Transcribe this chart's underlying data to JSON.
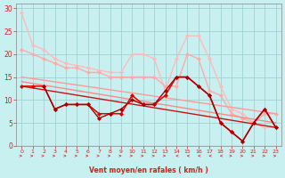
{
  "xlabel": "Vent moyen/en rafales ( km/h )",
  "bg_color": "#c8f0f0",
  "grid_color": "#99cccc",
  "xlim": [
    -0.5,
    23.5
  ],
  "ylim": [
    0,
    31
  ],
  "yticks": [
    0,
    5,
    10,
    15,
    20,
    25,
    30
  ],
  "xticks": [
    0,
    1,
    2,
    3,
    4,
    5,
    6,
    7,
    8,
    9,
    10,
    11,
    12,
    13,
    14,
    15,
    16,
    17,
    18,
    19,
    20,
    21,
    22,
    23
  ],
  "series": [
    {
      "name": "lightest_pink_top",
      "color": "#ffbbbb",
      "linewidth": 1.0,
      "marker": "D",
      "markersize": 2.0,
      "x": [
        0,
        1,
        2,
        3,
        4,
        5,
        6,
        7,
        8,
        9,
        10,
        11,
        12,
        13,
        14,
        15,
        16,
        17,
        18,
        19,
        20,
        21,
        22,
        23
      ],
      "y": [
        29,
        22,
        21,
        19,
        18,
        17.5,
        17,
        16.5,
        16,
        16,
        20,
        20,
        19,
        12,
        19,
        24,
        24,
        19,
        13,
        8,
        7,
        5,
        4,
        4
      ]
    },
    {
      "name": "light_pink_mid",
      "color": "#ffaaaa",
      "linewidth": 1.0,
      "marker": "D",
      "markersize": 2.0,
      "x": [
        0,
        1,
        2,
        3,
        4,
        5,
        6,
        7,
        8,
        9,
        10,
        11,
        12,
        13,
        14,
        15,
        16,
        17,
        18,
        19,
        20,
        21,
        22,
        23
      ],
      "y": [
        21,
        20,
        19,
        18,
        17,
        17,
        16,
        16,
        15,
        15,
        15,
        15,
        15,
        13,
        13,
        20,
        19,
        12,
        11,
        7,
        6,
        5,
        7,
        7
      ]
    },
    {
      "name": "medium_pink_diag1",
      "color": "#ff9999",
      "linewidth": 1.0,
      "marker": null,
      "x": [
        0,
        23
      ],
      "y": [
        15,
        7
      ]
    },
    {
      "name": "medium_pink_diag2",
      "color": "#ff8888",
      "linewidth": 1.0,
      "marker": null,
      "x": [
        0,
        23
      ],
      "y": [
        14,
        5
      ]
    },
    {
      "name": "dark_red_straight",
      "color": "#cc1111",
      "linewidth": 1.0,
      "marker": null,
      "x": [
        0,
        23
      ],
      "y": [
        13,
        4
      ]
    },
    {
      "name": "dark_red_jagged1",
      "color": "#dd0000",
      "linewidth": 1.1,
      "marker": "D",
      "markersize": 2.0,
      "x": [
        0,
        1,
        2,
        3,
        4,
        5,
        6,
        7,
        8,
        9,
        10,
        11,
        12,
        13,
        14,
        15,
        16,
        17,
        18,
        19,
        20,
        21,
        22,
        23
      ],
      "y": [
        13,
        13,
        13,
        8,
        9,
        9,
        9,
        7,
        7,
        7,
        11,
        9,
        9,
        11,
        15,
        15,
        13,
        11,
        5,
        3,
        1,
        5,
        8,
        4
      ]
    },
    {
      "name": "dark_red_jagged2",
      "color": "#aa0000",
      "linewidth": 1.0,
      "marker": "D",
      "markersize": 2.0,
      "x": [
        2,
        3,
        4,
        5,
        6,
        7,
        8,
        9,
        10,
        11,
        12,
        13,
        14,
        15,
        16,
        17,
        18,
        19,
        20,
        21,
        22,
        23
      ],
      "y": [
        13,
        8,
        9,
        9,
        9,
        6,
        7,
        8,
        10,
        9,
        9,
        12,
        15,
        15,
        13,
        11,
        5,
        3,
        1,
        5,
        8,
        4
      ]
    }
  ],
  "arrows": {
    "color": "#ee3333",
    "directions": [
      1,
      1,
      1,
      1,
      1,
      1,
      1,
      1,
      1,
      1,
      1,
      1,
      1,
      1,
      0,
      0,
      0,
      0,
      0,
      1,
      1,
      1,
      1,
      1
    ]
  }
}
